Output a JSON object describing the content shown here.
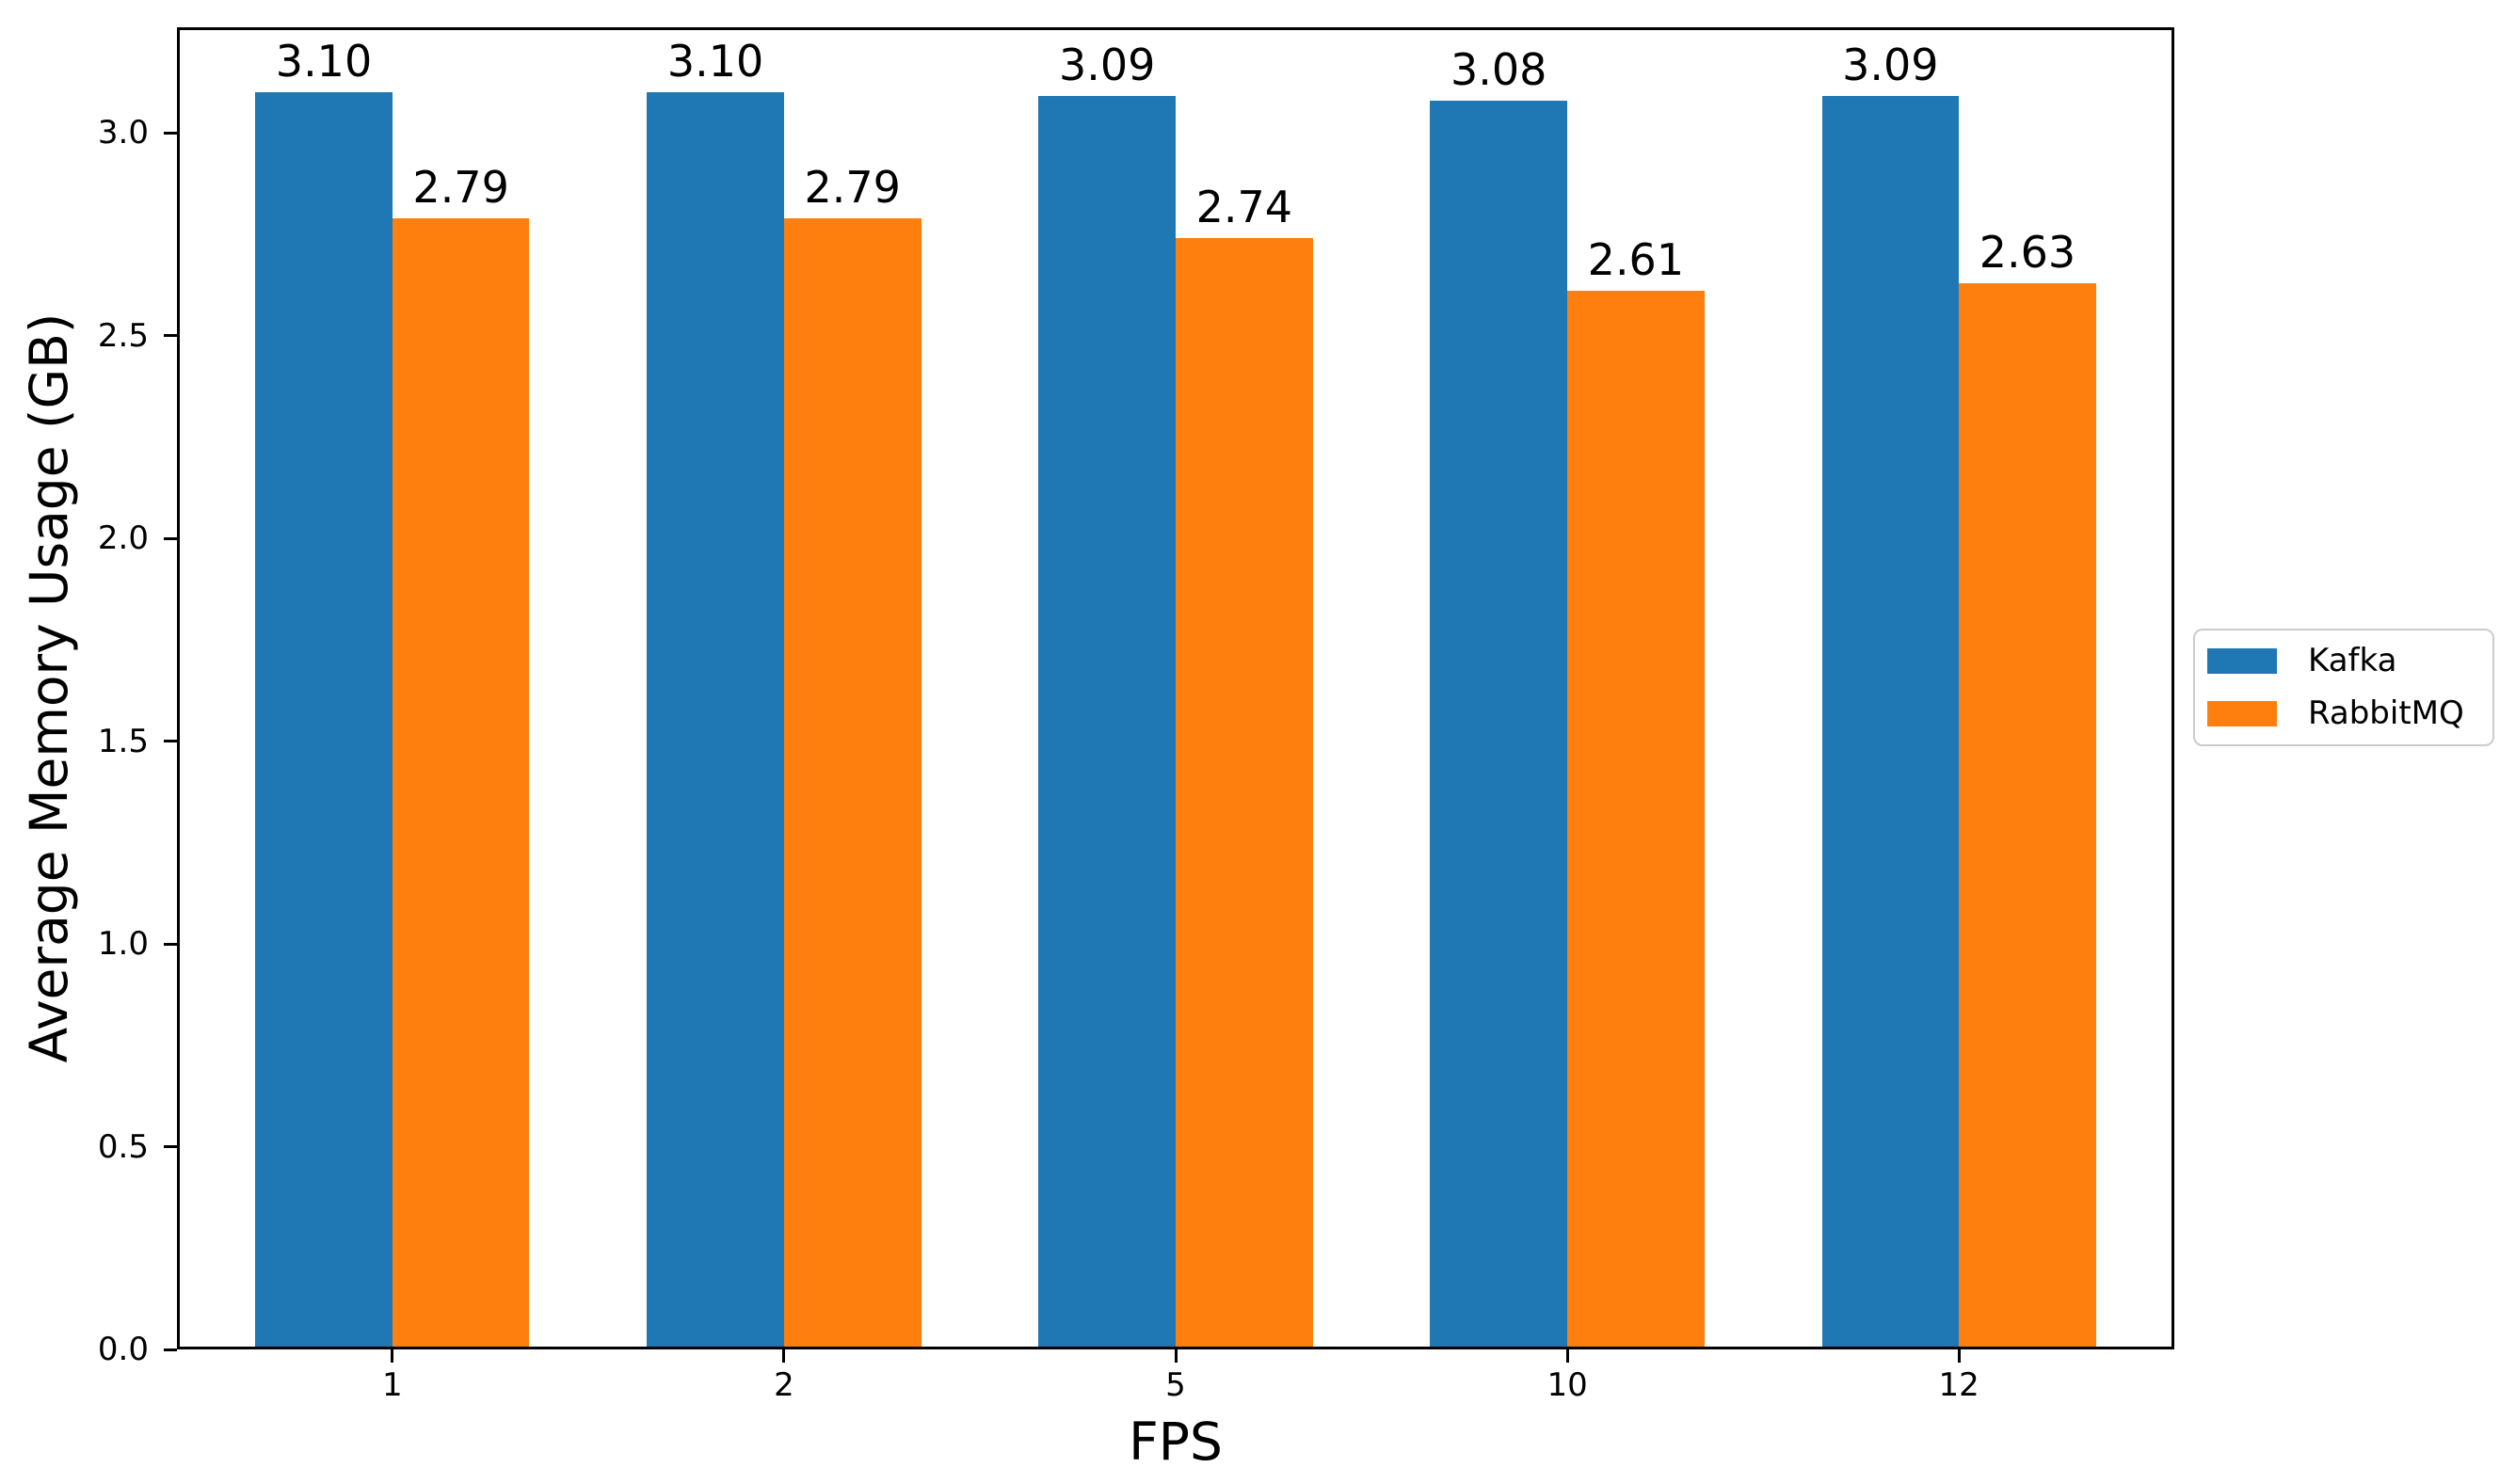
{
  "figure": {
    "background": "#ffffff"
  },
  "chart_data": {
    "type": "bar",
    "title": "",
    "xlabel": "FPS",
    "ylabel": "Average Memory Usage (GB)",
    "categories": [
      "1",
      "2",
      "5",
      "10",
      "12"
    ],
    "series": [
      {
        "name": "Kafka",
        "color": "#1f77b4",
        "values": [
          3.1,
          3.1,
          3.09,
          3.08,
          3.09
        ],
        "value_labels": [
          "3.10",
          "3.10",
          "3.09",
          "3.08",
          "3.09"
        ]
      },
      {
        "name": "RabbitMQ",
        "color": "#ff7f0e",
        "values": [
          2.79,
          2.79,
          2.74,
          2.61,
          2.63
        ],
        "value_labels": [
          "2.79",
          "2.79",
          "2.74",
          "2.61",
          "2.63"
        ]
      }
    ],
    "ylim": [
      0,
      3.26
    ],
    "yticks": [
      0.0,
      0.5,
      1.0,
      1.5,
      2.0,
      2.5,
      3.0
    ],
    "ytick_labels": [
      "0.0",
      "0.5",
      "1.0",
      "1.5",
      "2.0",
      "2.5",
      "3.0"
    ],
    "grid": false,
    "legend": {
      "position": "center-right-outside",
      "entries": [
        "Kafka",
        "RabbitMQ"
      ]
    },
    "bar_value_labels_shown": true,
    "axis_color": "#000000"
  }
}
